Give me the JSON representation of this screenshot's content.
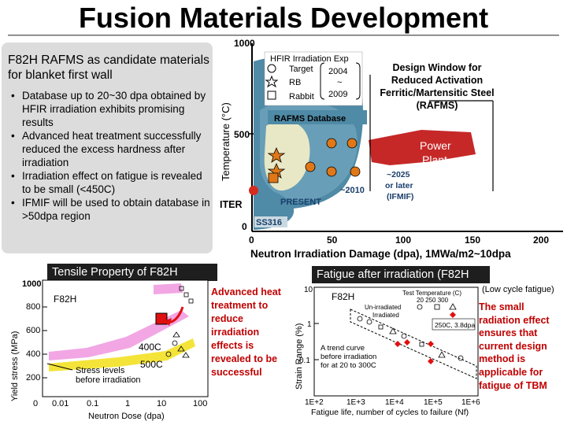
{
  "title": "Fusion Materials Development",
  "left_panel": {
    "heading": "F82H RAFMS as candidate materials for blanket first wall",
    "bullets": [
      "Database up to 20~30 dpa obtained by HFIR irradiation exhibits promising results",
      "Advanced heat treatment successfully reduced the excess hardness after irradiation",
      "Irradiation effect on fatigue is revealed to be small (<450C)",
      "IFMIF will be used to obtain database in >50dpa region"
    ]
  },
  "main_chart": {
    "y_axis_label": "Temperature (°C)",
    "x_axis_label": "Neutron Irradiation Damage (dpa), 1MWa/m2~10dpa",
    "x_ticks": [
      "0",
      "50",
      "100",
      "150",
      "200"
    ],
    "y_ticks": [
      "0",
      "500",
      "1000"
    ],
    "legend": {
      "title": "HFIR Irradiation Exp",
      "items": [
        "Target",
        "RB",
        "Rabbit"
      ],
      "period_start": "2004",
      "period_sep": "~",
      "period_end": "2009"
    },
    "database_label": "RAFMS Database",
    "design_window": "Design Window for Reduced Activation Ferritic/Martensitic Steel (RAFMS)",
    "power_plant": "Power Plant",
    "present_label": "PRESENT",
    "year_2010": "~2010",
    "year_2025": "~2025 or later (IFMIF)",
    "iter_label": "ITER",
    "ss316_label": "SS316",
    "colors": {
      "database_region": "#4f8aa6",
      "highlight": "#e8e8c6",
      "power_plant": "#c62828",
      "points": "#e07818"
    }
  },
  "tensile": {
    "label": "Tensile Property of F82H",
    "y_axis_label": "Yield stress (MPa)",
    "x_axis_label": "Neutron Dose (dpa)",
    "x_ticks": [
      "0",
      "0.01",
      "0.1",
      "1",
      "10",
      "100"
    ],
    "y_ticks": [
      "1000",
      "800",
      "600",
      "400",
      "200"
    ],
    "material": "F82H",
    "series_400": "400C",
    "series_500": "500C",
    "stress_note": "Stress levels before irradiation"
  },
  "advanced_note": "Advanced heat treatment to reduce irradiation effects is revealed to be successful",
  "fatigue": {
    "label": "Fatigue after irradiation (F82H",
    "low_cycle_note": "(Low cycle fatigue)",
    "y_axis_label": "Strain Range (%)",
    "x_axis_label": "Fatigue life, number of cycles to failure (Nf)",
    "x_ticks": [
      "1E+2",
      "1E+3",
      "1E+4",
      "1E+5",
      "1E+6"
    ],
    "y_ticks": [
      "10",
      "1",
      "0.1"
    ],
    "material": "F82H",
    "legend_title": "Test Temperature (C)",
    "legend_temps": "20  250  300",
    "legend_unirr": "Un-irradiated",
    "legend_irr": "Irradiated",
    "condition": "250C, 3.8dpa",
    "trend_note": "A trend curve before irradiation for at 20 to 300C",
    "small_effect": "The small radiation effect ensures that current design method is applicable for fatigue of TBM"
  }
}
